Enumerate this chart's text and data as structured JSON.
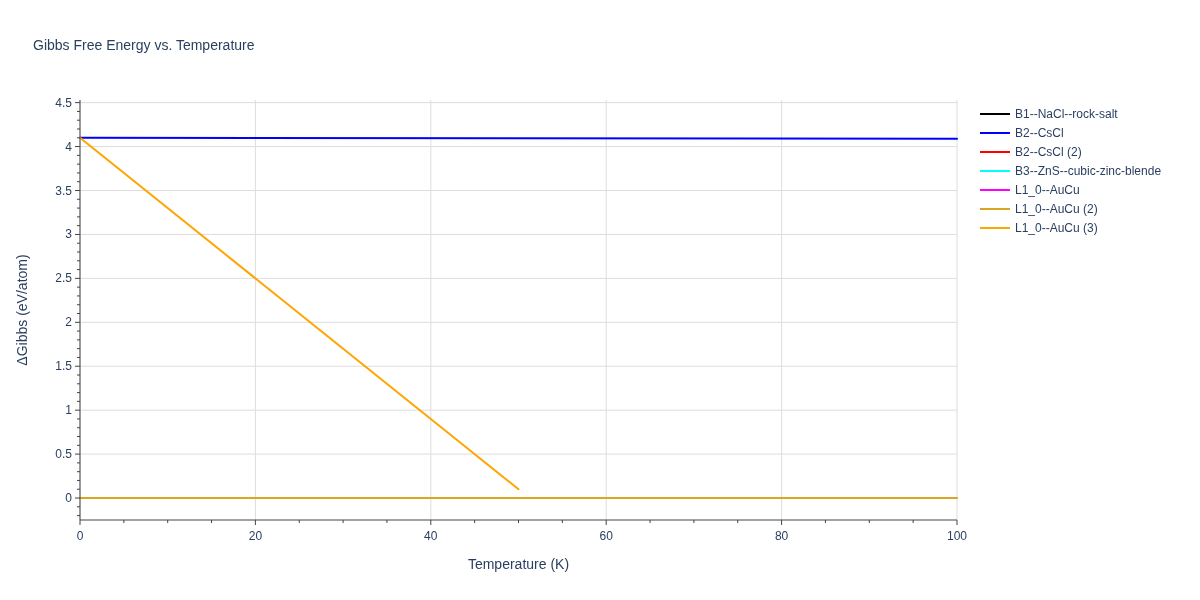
{
  "chart_data": {
    "type": "line",
    "title": "Gibbs Free Energy vs. Temperature",
    "xlabel": "Temperature (K)",
    "ylabel": "ΔGibbs (eV/atom)",
    "xlim": [
      0,
      100
    ],
    "ylim": [
      -0.25,
      4.53
    ],
    "xticks": [
      0,
      {
        "value": 5,
        "label": null
      },
      {
        "value": 10,
        "label": null
      },
      {
        "value": 15,
        "label": null
      },
      20,
      {
        "value": 25,
        "label": null
      },
      {
        "value": 30,
        "label": null
      },
      {
        "value": 35,
        "label": null
      },
      40,
      {
        "value": 45,
        "label": null
      },
      {
        "value": 50,
        "label": null
      },
      {
        "value": 55,
        "label": null
      },
      60,
      {
        "value": 65,
        "label": null
      },
      {
        "value": 70,
        "label": null
      },
      {
        "value": 75,
        "label": null
      },
      80,
      {
        "value": 85,
        "label": null
      },
      {
        "value": 90,
        "label": null
      },
      {
        "value": 95,
        "label": null
      },
      100
    ],
    "yticks": [
      {
        "value": -0.2,
        "label": null
      },
      {
        "value": -0.1,
        "label": null
      },
      0,
      {
        "value": 0.1,
        "label": null
      },
      {
        "value": 0.2,
        "label": null
      },
      {
        "value": 0.3,
        "label": null
      },
      {
        "value": 0.4,
        "label": null
      },
      0.5,
      {
        "value": 0.6,
        "label": null
      },
      {
        "value": 0.7,
        "label": null
      },
      {
        "value": 0.8,
        "label": null
      },
      {
        "value": 0.9,
        "label": null
      },
      1,
      {
        "value": 1.1,
        "label": null
      },
      {
        "value": 1.2,
        "label": null
      },
      {
        "value": 1.3,
        "label": null
      },
      {
        "value": 1.4,
        "label": null
      },
      1.5,
      {
        "value": 1.6,
        "label": null
      },
      {
        "value": 1.7,
        "label": null
      },
      {
        "value": 1.8,
        "label": null
      },
      {
        "value": 1.9,
        "label": null
      },
      2,
      {
        "value": 2.1,
        "label": null
      },
      {
        "value": 2.2,
        "label": null
      },
      {
        "value": 2.3,
        "label": null
      },
      {
        "value": 2.4,
        "label": null
      },
      2.5,
      {
        "value": 2.6,
        "label": null
      },
      {
        "value": 2.7,
        "label": null
      },
      {
        "value": 2.8,
        "label": null
      },
      {
        "value": 2.9,
        "label": null
      },
      3,
      {
        "value": 3.1,
        "label": null
      },
      {
        "value": 3.2,
        "label": null
      },
      {
        "value": 3.3,
        "label": null
      },
      {
        "value": 3.4,
        "label": null
      },
      3.5,
      {
        "value": 3.6,
        "label": null
      },
      {
        "value": 3.7,
        "label": null
      },
      {
        "value": 3.8,
        "label": null
      },
      {
        "value": 3.9,
        "label": null
      },
      4,
      {
        "value": 4.1,
        "label": null
      },
      {
        "value": 4.2,
        "label": null
      },
      {
        "value": 4.3,
        "label": null
      },
      {
        "value": 4.4,
        "label": null
      },
      4.5
    ],
    "grid": true,
    "legend": "top right",
    "line_style": "solid",
    "series": [
      {
        "name": "B1--NaCl--rock-salt",
        "color": "#000000"
      },
      {
        "name": "B2--CsCl",
        "color": "#0000ff",
        "x": [
          0,
          100
        ],
        "values": [
          4.1,
          4.09
        ]
      },
      {
        "name": "B2--CsCl (2)",
        "color": "#ff0000"
      },
      {
        "name": "B3--ZnS--cubic-zinc-blende",
        "color": "#00ffff"
      },
      {
        "name": "L1_0--AuCu",
        "color": "#ff00ff"
      },
      {
        "name": "L1_0--AuCu (2)",
        "color": "#daa520",
        "x": [
          0,
          100
        ],
        "values": [
          0,
          0
        ]
      },
      {
        "name": "L1_0--AuCu (3)",
        "color": "#ffa500",
        "x": [
          0,
          50
        ],
        "values": [
          4.1,
          0.1
        ]
      }
    ]
  }
}
